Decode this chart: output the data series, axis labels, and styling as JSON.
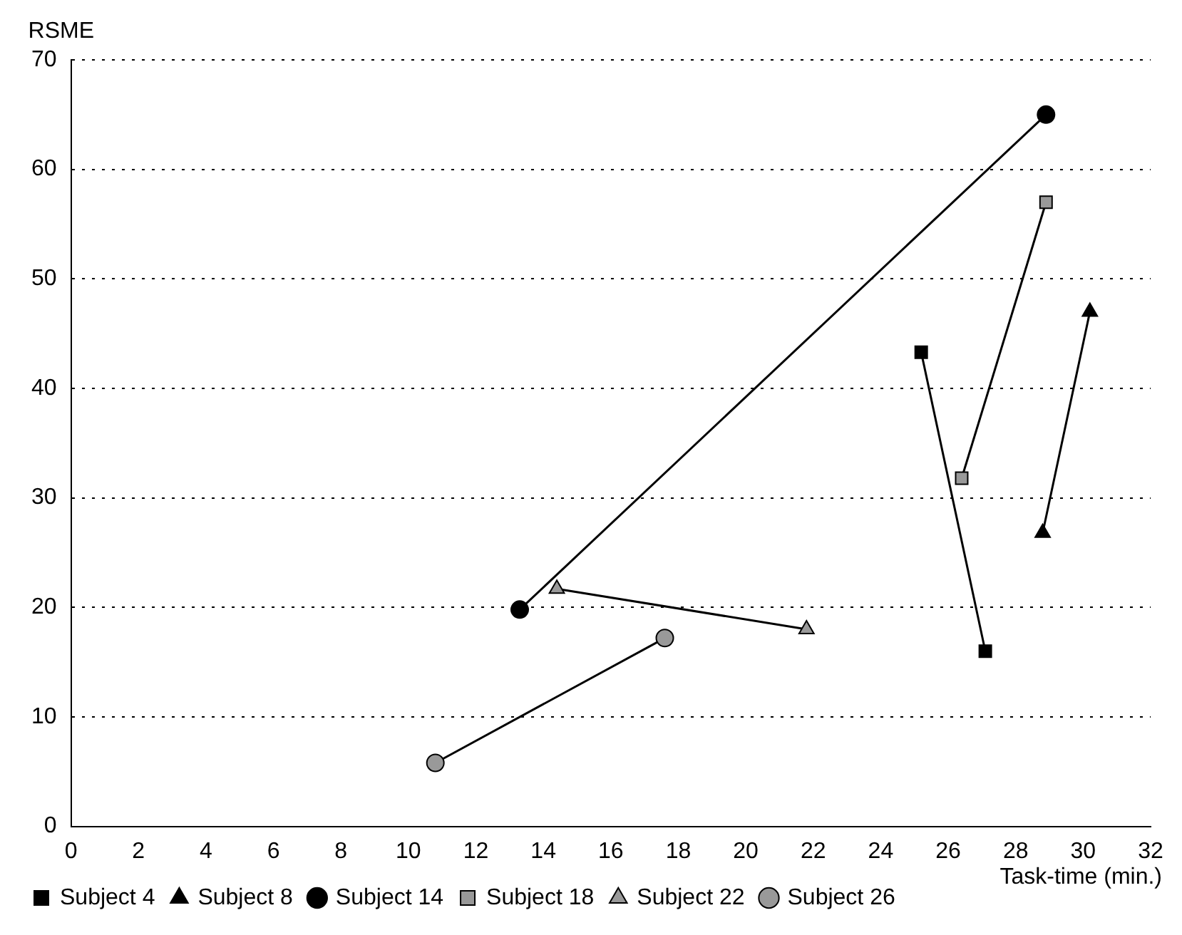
{
  "chart_data": {
    "type": "line",
    "xlabel": "Task-time (min.)",
    "ylabel": "RSME",
    "xlim": [
      0,
      32
    ],
    "xticks": [
      0,
      2,
      4,
      6,
      8,
      10,
      12,
      14,
      16,
      18,
      20,
      22,
      24,
      26,
      28,
      30,
      32
    ],
    "ylim": [
      0,
      70
    ],
    "yticks": [
      0,
      10,
      20,
      30,
      40,
      50,
      60,
      70
    ],
    "grid": "y",
    "legend": "bottom left",
    "series": [
      {
        "name": "Subject 4",
        "color": "#000000",
        "marker": "square",
        "x": [
          25.2,
          27.1
        ],
        "values": [
          43.3,
          16
        ]
      },
      {
        "name": "Subject 8",
        "color": "#000000",
        "marker": "triangle",
        "x": [
          28.8,
          30.2
        ],
        "values": [
          26.8,
          47
        ]
      },
      {
        "name": "Subject 14",
        "color": "#000000",
        "marker": "circle",
        "x": [
          13.3,
          28.9
        ],
        "values": [
          19.8,
          65
        ]
      },
      {
        "name": "Subject 18",
        "color": "#999999",
        "marker": "square",
        "x": [
          28.9,
          26.4
        ],
        "values": [
          57,
          31.8
        ]
      },
      {
        "name": "Subject 22",
        "color": "#999999",
        "marker": "triangle",
        "x": [
          21.8,
          14.4
        ],
        "values": [
          18,
          21.7
        ]
      },
      {
        "name": "Subject 26",
        "color": "#999999",
        "marker": "circle",
        "x": [
          17.6,
          10.8
        ],
        "values": [
          17.2,
          5.8
        ]
      }
    ]
  }
}
